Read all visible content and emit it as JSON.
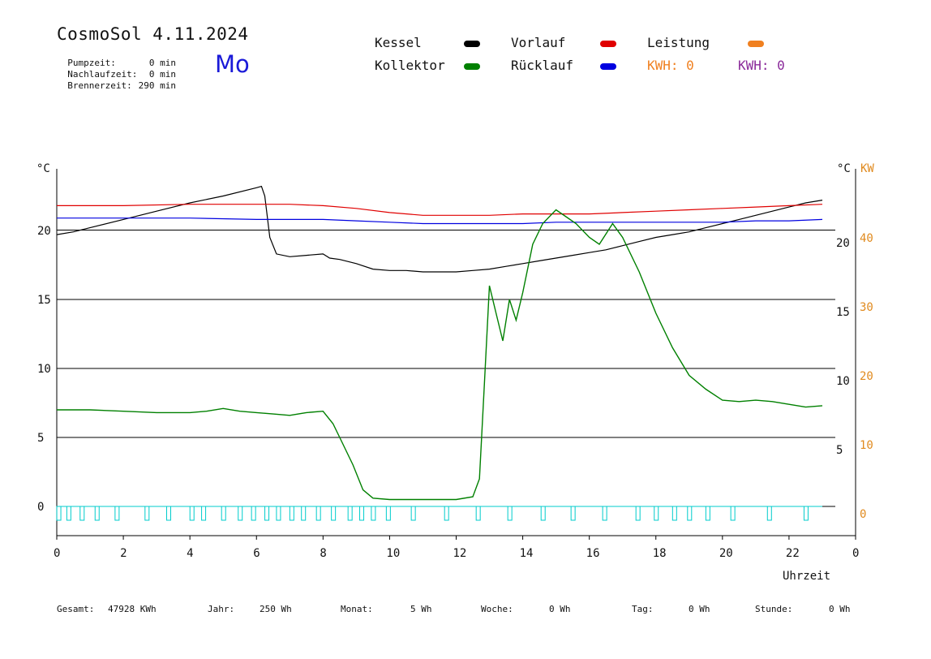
{
  "header": {
    "title": "CosmoSol 4.11.2024",
    "pumpzeit_label": "Pumpzeit:",
    "pumpzeit_value": "0 min",
    "nachlaufzeit_label": "Nachlaufzeit:",
    "nachlaufzeit_value": "0 min",
    "brennerzeit_label": "Brennerzeit:",
    "brennerzeit_value": "290 min",
    "weekday": "Mo"
  },
  "legend": {
    "kessel": "Kessel",
    "vorlauf": "Vorlauf",
    "leistung": "Leistung",
    "kollektor": "Kollektor",
    "ruecklauf": "Rücklauf",
    "kwh_orange": "KWH: 0",
    "kwh_purple": "KWH: 0"
  },
  "colors": {
    "kessel": "#000000",
    "vorlauf": "#e00000",
    "leistung": "#f08020",
    "kollektor": "#008000",
    "ruecklauf": "#0000e0",
    "kwh_purple": "#8a2a9a",
    "pump": "#00cccc"
  },
  "footer": {
    "gesamt_label": "Gesamt:",
    "gesamt_value": "47928 KWh",
    "jahr_label": "Jahr:",
    "jahr_value": "250 Wh",
    "monat_label": "Monat:",
    "monat_value": "5 Wh",
    "woche_label": "Woche:",
    "woche_value": "0 Wh",
    "tag_label": "Tag:",
    "tag_value": "0 Wh",
    "stunde_label": "Stunde:",
    "stunde_value": "0 Wh"
  },
  "chart_data": {
    "type": "line",
    "xlabel": "Uhrzeit",
    "ylabel_left": "°C",
    "ylabel_right_c": "°C",
    "ylabel_right_kw": "KW",
    "xlim": [
      0,
      24
    ],
    "ylim": [
      -1.5,
      25
    ],
    "x_ticks": [
      "0",
      "2",
      "4",
      "6",
      "8",
      "10",
      "12",
      "14",
      "16",
      "18",
      "20",
      "22",
      "0"
    ],
    "y_ticks_left": [
      "0",
      "5",
      "10",
      "15",
      "20"
    ],
    "y_ticks_right_c": [
      "5",
      "10",
      "15",
      "20"
    ],
    "y_ticks_right_kw": [
      "0",
      "10",
      "20",
      "30",
      "40"
    ],
    "grid": "horizontal",
    "series": [
      {
        "name": "Kessel",
        "color": "#000000",
        "x": [
          0,
          0.5,
          1,
          2,
          3,
          4,
          5,
          6,
          6.15,
          6.25,
          6.4,
          6.6,
          7,
          7.5,
          8,
          8.2,
          8.5,
          9,
          9.5,
          10,
          10.5,
          11,
          11.5,
          12,
          12.5,
          13,
          13.5,
          14,
          14.5,
          15,
          15.5,
          16,
          16.5,
          17,
          17.5,
          18,
          18.5,
          19,
          19.5,
          20,
          20.5,
          21,
          21.5,
          22,
          22.5,
          23
        ],
        "y": [
          19.7,
          19.9,
          20.2,
          20.8,
          21.4,
          22.0,
          22.5,
          23.1,
          23.2,
          22.5,
          19.5,
          18.3,
          18.1,
          18.2,
          18.3,
          18.0,
          17.9,
          17.6,
          17.2,
          17.1,
          17.1,
          17.0,
          17.0,
          17.0,
          17.1,
          17.2,
          17.4,
          17.6,
          17.8,
          18.0,
          18.2,
          18.4,
          18.6,
          18.9,
          19.2,
          19.5,
          19.7,
          19.9,
          20.2,
          20.5,
          20.8,
          21.1,
          21.4,
          21.7,
          22.0,
          22.2
        ]
      },
      {
        "name": "Vorlauf",
        "color": "#e00000",
        "x": [
          0,
          2,
          4,
          6,
          7,
          8,
          9,
          10,
          11,
          12,
          13,
          14,
          15,
          16,
          17,
          18,
          19,
          20,
          21,
          22,
          23
        ],
        "y": [
          21.8,
          21.8,
          21.9,
          21.9,
          21.9,
          21.8,
          21.6,
          21.3,
          21.1,
          21.1,
          21.1,
          21.2,
          21.2,
          21.2,
          21.3,
          21.4,
          21.5,
          21.6,
          21.7,
          21.8,
          21.9
        ]
      },
      {
        "name": "Rücklauf",
        "color": "#0000e0",
        "x": [
          0,
          2,
          4,
          6,
          8,
          9,
          10,
          11,
          12,
          13,
          14,
          15,
          16,
          17,
          18,
          19,
          20,
          21,
          22,
          23
        ],
        "y": [
          20.9,
          20.9,
          20.9,
          20.8,
          20.8,
          20.7,
          20.6,
          20.5,
          20.5,
          20.5,
          20.5,
          20.6,
          20.6,
          20.6,
          20.6,
          20.6,
          20.6,
          20.7,
          20.7,
          20.8
        ]
      },
      {
        "name": "Kollektor",
        "color": "#008000",
        "x": [
          0,
          1,
          2,
          3,
          4,
          4.5,
          5,
          5.5,
          6,
          6.5,
          7,
          7.5,
          8,
          8.3,
          8.6,
          8.9,
          9.2,
          9.5,
          10,
          11,
          12,
          12.5,
          12.7,
          12.85,
          13,
          13.2,
          13.4,
          13.6,
          13.8,
          14,
          14.3,
          14.6,
          15,
          15.3,
          15.6,
          16,
          16.3,
          16.7,
          17,
          17.5,
          18,
          18.5,
          19,
          19.5,
          20,
          20.5,
          21,
          21.5,
          22,
          22.5,
          23
        ],
        "y": [
          7.0,
          7.0,
          6.9,
          6.8,
          6.8,
          6.9,
          7.1,
          6.9,
          6.8,
          6.7,
          6.6,
          6.8,
          6.9,
          6.0,
          4.5,
          3.0,
          1.2,
          0.6,
          0.5,
          0.5,
          0.5,
          0.7,
          2.0,
          9.0,
          16.0,
          14.0,
          12.0,
          15.0,
          13.5,
          15.5,
          19.0,
          20.5,
          21.5,
          21.0,
          20.5,
          19.5,
          19.0,
          20.5,
          19.5,
          17.0,
          14.0,
          11.5,
          9.5,
          8.5,
          7.7,
          7.6,
          7.7,
          7.6,
          7.4,
          7.2,
          7.3
        ]
      }
    ],
    "pump_pulses_x": [
      0.05,
      0.35,
      0.75,
      1.2,
      1.8,
      2.7,
      3.35,
      4.05,
      4.4,
      5.0,
      5.5,
      5.9,
      6.3,
      6.65,
      7.05,
      7.4,
      7.85,
      8.3,
      8.8,
      9.15,
      9.5,
      9.95,
      10.7,
      11.7,
      12.65,
      13.6,
      14.6,
      15.5,
      16.45,
      17.45,
      18.0,
      18.55,
      19.0,
      19.55,
      20.3,
      21.4,
      22.5
    ],
    "pump_level": 0
  }
}
